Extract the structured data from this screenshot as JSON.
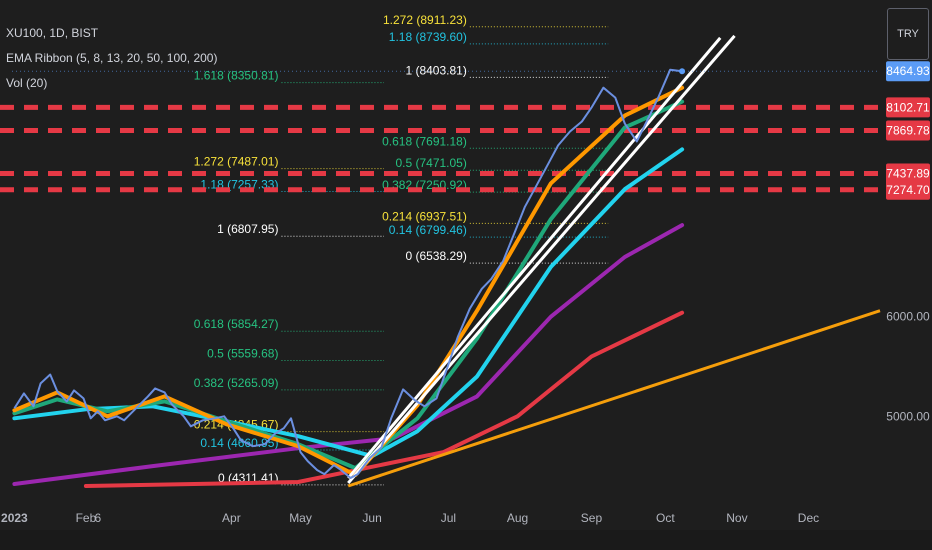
{
  "header": {
    "symbol_line": "XU100, 1D, BIST",
    "indicator_ema": "EMA Ribbon (5, 8, 13, 20, 50, 100, 200)",
    "indicator_vol": "Vol (20)",
    "currency": "TRY"
  },
  "chart_data": {
    "type": "candlestick",
    "symbol": "XU100",
    "interval": "1D",
    "exchange": "BIST",
    "currency": "TRY",
    "ylim": [
      4300,
      9100
    ],
    "grid": false,
    "x_ticks": [
      {
        "label": "2023",
        "date": "2023-01-02"
      },
      {
        "label": "Feb",
        "date": "2023-02-01"
      },
      {
        "label": "6",
        "date": "2023-02-06"
      },
      {
        "label": "Apr",
        "date": "2023-04-03"
      },
      {
        "label": "May",
        "date": "2023-05-02"
      },
      {
        "label": "Jun",
        "date": "2023-06-01"
      },
      {
        "label": "Jul",
        "date": "2023-07-03"
      },
      {
        "label": "Aug",
        "date": "2023-08-01"
      },
      {
        "label": "Sep",
        "date": "2023-09-01"
      },
      {
        "label": "Oct",
        "date": "2023-10-02"
      },
      {
        "label": "Nov",
        "date": "2023-11-01"
      },
      {
        "label": "Dec",
        "date": "2023-12-01"
      }
    ],
    "y_ticks": [
      {
        "label": "5000.00",
        "value": 5000
      },
      {
        "label": "6000.00",
        "value": 6000
      }
    ],
    "price_labels": [
      {
        "label": "8464.93",
        "value": 8464.93,
        "color": "#5b9cf6",
        "text_color": "#ffffff"
      },
      {
        "label": "8102.71",
        "value": 8102.71,
        "color": "#e53945",
        "text_color": "#ffffff"
      },
      {
        "label": "7869.78",
        "value": 7869.78,
        "color": "#e53945",
        "text_color": "#ffffff"
      },
      {
        "label": "7437.89",
        "value": 7437.89,
        "color": "#e53945",
        "text_color": "#ffffff"
      },
      {
        "label": "7274.70",
        "value": 7274.7,
        "color": "#e53945",
        "text_color": "#ffffff"
      }
    ],
    "current_price": 8464.93,
    "resistance_zones": [
      {
        "levels": [
          8102.71,
          7869.78
        ],
        "color": "#e53945"
      },
      {
        "levels": [
          7437.89,
          7274.7
        ],
        "color": "#e53945"
      }
    ],
    "fib_sets": [
      {
        "name": "fib-early",
        "date_start": "2023-04-24",
        "date_end": "2023-06-06",
        "levels": [
          {
            "ratio": "1.618",
            "text": "1.618 (8350.81)",
            "value": 8350.81,
            "color": "#26c281"
          },
          {
            "ratio": "1.272",
            "text": "1.272 (7487.01)",
            "value": 7487.01,
            "color": "#f7e13a"
          },
          {
            "ratio": "1.18",
            "text": "1.18 (7257.33)",
            "value": 7257.33,
            "color": "#22c3e0"
          },
          {
            "ratio": "1",
            "text": "1 (6807.95)",
            "value": 6807.95,
            "color": "#ffffff"
          },
          {
            "ratio": "0.618",
            "text": "0.618 (5854.27)",
            "value": 5854.27,
            "color": "#26c281"
          },
          {
            "ratio": "0.5",
            "text": "0.5 (5559.68)",
            "value": 5559.68,
            "color": "#26c281"
          },
          {
            "ratio": "0.382",
            "text": "0.382 (5265.09)",
            "value": 5265.09,
            "color": "#26c281"
          },
          {
            "ratio": "0.214",
            "text": "0.214 (4845.67)",
            "value": 4845.67,
            "color": "#f7e13a"
          },
          {
            "ratio": "0.14",
            "text": "0.14 (4660.95)",
            "value": 4660.95,
            "color": "#22c3e0"
          },
          {
            "ratio": "0",
            "text": "0 (4311.41)",
            "value": 4311.41,
            "color": "#ffffff"
          }
        ]
      },
      {
        "name": "fib-late",
        "date_start": "2023-07-12",
        "date_end": "2023-09-08",
        "levels": [
          {
            "ratio": "1.272",
            "text": "1.272 (8911.23)",
            "value": 8911.23,
            "color": "#f7e13a"
          },
          {
            "ratio": "1.18",
            "text": "1.18 (8739.60)",
            "value": 8739.6,
            "color": "#22c3e0"
          },
          {
            "ratio": "1",
            "text": "1 (8403.81)",
            "value": 8403.81,
            "color": "#ffffff"
          },
          {
            "ratio": "0.618",
            "text": "0.618 (7691.18)",
            "value": 7691.18,
            "color": "#26c281"
          },
          {
            "ratio": "0.5",
            "text": "0.5 (7471.05)",
            "value": 7471.05,
            "color": "#26c281"
          },
          {
            "ratio": "0.382",
            "text": "0.382 (7250.92)",
            "value": 7250.92,
            "color": "#26c281"
          },
          {
            "ratio": "0.214",
            "text": "0.214 (6937.51)",
            "value": 6937.51,
            "color": "#f7e13a"
          },
          {
            "ratio": "0.14",
            "text": "0.14 (6799.46)",
            "value": 6799.46,
            "color": "#22c3e0"
          },
          {
            "ratio": "0",
            "text": "0 (6538.29)",
            "value": 6538.29,
            "color": "#ffffff"
          }
        ]
      }
    ],
    "price_path": [
      [
        "2023-01-02",
        5080
      ],
      [
        "2023-01-06",
        5230
      ],
      [
        "2023-01-10",
        5100
      ],
      [
        "2023-01-13",
        5330
      ],
      [
        "2023-01-17",
        5420
      ],
      [
        "2023-01-20",
        5250
      ],
      [
        "2023-01-24",
        5150
      ],
      [
        "2023-01-27",
        5260
      ],
      [
        "2023-01-31",
        5180
      ],
      [
        "2023-02-03",
        4980
      ],
      [
        "2023-02-06",
        5050
      ],
      [
        "2023-02-09",
        4960
      ],
      [
        "2023-02-14",
        5000
      ],
      [
        "2023-02-17",
        4960
      ],
      [
        "2023-02-22",
        5080
      ],
      [
        "2023-02-27",
        5200
      ],
      [
        "2023-03-02",
        5280
      ],
      [
        "2023-03-06",
        5240
      ],
      [
        "2023-03-09",
        5120
      ],
      [
        "2023-03-14",
        5000
      ],
      [
        "2023-03-17",
        4900
      ],
      [
        "2023-03-22",
        4960
      ],
      [
        "2023-03-27",
        4980
      ],
      [
        "2023-03-31",
        5000
      ],
      [
        "2023-04-04",
        4870
      ],
      [
        "2023-04-07",
        4760
      ],
      [
        "2023-04-12",
        4700
      ],
      [
        "2023-04-17",
        4720
      ],
      [
        "2023-04-21",
        4820
      ],
      [
        "2023-04-25",
        4880
      ],
      [
        "2023-04-28",
        4980
      ],
      [
        "2023-05-02",
        4640
      ],
      [
        "2023-05-05",
        4550
      ],
      [
        "2023-05-09",
        4460
      ],
      [
        "2023-05-12",
        4420
      ],
      [
        "2023-05-16",
        4510
      ],
      [
        "2023-05-19",
        4460
      ],
      [
        "2023-05-23",
        4380
      ],
      [
        "2023-05-26",
        4420
      ],
      [
        "2023-05-31",
        4580
      ],
      [
        "2023-06-05",
        4690
      ],
      [
        "2023-06-09",
        4980
      ],
      [
        "2023-06-14",
        5270
      ],
      [
        "2023-06-19",
        5160
      ],
      [
        "2023-06-23",
        5100
      ],
      [
        "2023-06-28",
        5180
      ],
      [
        "2023-07-03",
        5520
      ],
      [
        "2023-07-07",
        5800
      ],
      [
        "2023-07-12",
        6080
      ],
      [
        "2023-07-17",
        6280
      ],
      [
        "2023-07-21",
        6380
      ],
      [
        "2023-07-26",
        6560
      ],
      [
        "2023-07-31",
        6860
      ],
      [
        "2023-08-04",
        7100
      ],
      [
        "2023-08-09",
        7320
      ],
      [
        "2023-08-14",
        7540
      ],
      [
        "2023-08-18",
        7720
      ],
      [
        "2023-08-23",
        7860
      ],
      [
        "2023-08-28",
        7960
      ],
      [
        "2023-09-01",
        8100
      ],
      [
        "2023-09-06",
        8300
      ],
      [
        "2023-09-11",
        8200
      ],
      [
        "2023-09-15",
        7940
      ],
      [
        "2023-09-20",
        7760
      ],
      [
        "2023-09-25",
        8000
      ],
      [
        "2023-09-29",
        8200
      ],
      [
        "2023-10-04",
        8480
      ],
      [
        "2023-10-09",
        8465
      ]
    ],
    "series": [
      {
        "name": "EMA 200",
        "color": "#e53945",
        "points": [
          [
            "2023-02-01",
            4300
          ],
          [
            "2023-05-01",
            4340
          ],
          [
            "2023-07-01",
            4640
          ],
          [
            "2023-08-01",
            5000
          ],
          [
            "2023-09-01",
            5600
          ],
          [
            "2023-10-09",
            6040
          ]
        ]
      },
      {
        "name": "EMA 100",
        "color": "#9c27b0",
        "points": [
          [
            "2023-01-02",
            4320
          ],
          [
            "2023-03-01",
            4500
          ],
          [
            "2023-05-01",
            4680
          ],
          [
            "2023-06-10",
            4780
          ],
          [
            "2023-07-15",
            5200
          ],
          [
            "2023-08-15",
            6000
          ],
          [
            "2023-09-15",
            6600
          ],
          [
            "2023-10-09",
            6920
          ]
        ]
      },
      {
        "name": "EMA 50",
        "color": "#22d3ee",
        "points": [
          [
            "2023-01-02",
            4980
          ],
          [
            "2023-02-01",
            5070
          ],
          [
            "2023-03-01",
            5100
          ],
          [
            "2023-04-01",
            4950
          ],
          [
            "2023-05-01",
            4800
          ],
          [
            "2023-06-01",
            4600
          ],
          [
            "2023-06-20",
            4850
          ],
          [
            "2023-07-15",
            5400
          ],
          [
            "2023-08-15",
            6500
          ],
          [
            "2023-09-15",
            7280
          ],
          [
            "2023-10-09",
            7680
          ]
        ]
      },
      {
        "name": "EMA 20",
        "color": "#1fa87a",
        "points": [
          [
            "2023-01-02",
            5030
          ],
          [
            "2023-01-20",
            5170
          ],
          [
            "2023-02-10",
            5050
          ],
          [
            "2023-03-06",
            5150
          ],
          [
            "2023-04-01",
            4950
          ],
          [
            "2023-05-01",
            4720
          ],
          [
            "2023-05-25",
            4480
          ],
          [
            "2023-06-20",
            4980
          ],
          [
            "2023-07-15",
            5780
          ],
          [
            "2023-08-15",
            6980
          ],
          [
            "2023-09-15",
            7900
          ],
          [
            "2023-10-09",
            8160
          ]
        ]
      },
      {
        "name": "EMA 8",
        "color": "#ff9800",
        "points": [
          [
            "2023-01-02",
            5060
          ],
          [
            "2023-01-20",
            5240
          ],
          [
            "2023-02-10",
            5000
          ],
          [
            "2023-03-06",
            5200
          ],
          [
            "2023-04-01",
            4920
          ],
          [
            "2023-05-01",
            4700
          ],
          [
            "2023-05-25",
            4410
          ],
          [
            "2023-06-20",
            5110
          ],
          [
            "2023-07-15",
            6060
          ],
          [
            "2023-08-15",
            7340
          ],
          [
            "2023-09-15",
            8020
          ],
          [
            "2023-10-09",
            8300
          ]
        ]
      }
    ],
    "trendlines": [
      {
        "name": "trendline-orange",
        "color": "#f59e0b",
        "from": [
          "2023-05-22",
          4300
        ],
        "to": [
          "2023-12-31",
          6060
        ]
      },
      {
        "name": "trendline-white-1",
        "color": "#ffffff",
        "from": [
          "2023-05-22",
          4380
        ],
        "to": [
          "2023-10-25",
          8800
        ]
      },
      {
        "name": "trendline-white-2",
        "color": "#ffffff",
        "from": [
          "2023-05-22",
          4330
        ],
        "to": [
          "2023-10-31",
          8820
        ]
      }
    ]
  }
}
